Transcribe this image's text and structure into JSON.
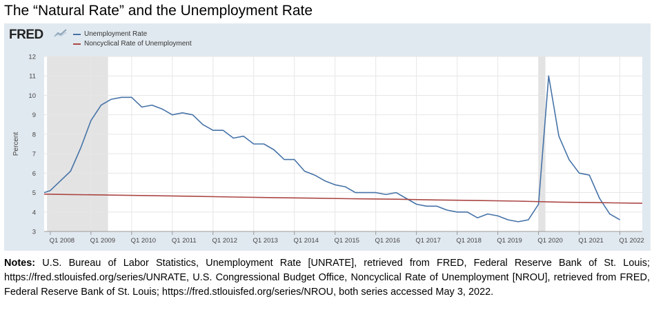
{
  "title": "The “Natural Rate” and the Unemployment Rate",
  "logo_text": "FRED",
  "notes_label": "Notes:",
  "notes_text": "U.S. Bureau of Labor Statistics, Unemployment Rate [UNRATE], retrieved from FRED, Federal Reserve Bank of St. Louis; https://fred.stlouisfed.org/series/UNRATE, U.S. Congressional Budget Office, Noncyclical Rate of Unemployment [NROU], retrieved from FRED, Federal Reserve Bank of St. Louis; https://fred.stlouisfed.org/series/NROU, both series accessed May 3, 2022.",
  "chart_data": {
    "type": "line",
    "title": "The “Natural Rate” and the Unemployment Rate",
    "xlabel": "",
    "ylabel": "Percent",
    "ylim": [
      3,
      12
    ],
    "yticks": [
      3,
      4,
      5,
      6,
      7,
      8,
      9,
      10,
      11,
      12
    ],
    "xlim": [
      2007.85,
      2022.55
    ],
    "xticks": [
      {
        "x": 2008,
        "label": "Q1 2008"
      },
      {
        "x": 2009,
        "label": "Q1 2009"
      },
      {
        "x": 2010,
        "label": "Q1 2010"
      },
      {
        "x": 2011,
        "label": "Q1 2011"
      },
      {
        "x": 2012,
        "label": "Q1 2012"
      },
      {
        "x": 2013,
        "label": "Q1 2013"
      },
      {
        "x": 2014,
        "label": "Q1 2014"
      },
      {
        "x": 2015,
        "label": "Q1 2015"
      },
      {
        "x": 2016,
        "label": "Q1 2016"
      },
      {
        "x": 2017,
        "label": "Q1 2017"
      },
      {
        "x": 2018,
        "label": "Q1 2018"
      },
      {
        "x": 2019,
        "label": "Q1 2019"
      },
      {
        "x": 2020,
        "label": "Q1 2020"
      },
      {
        "x": 2021,
        "label": "Q1 2021"
      },
      {
        "x": 2022,
        "label": "Q1 2022"
      }
    ],
    "grid": true,
    "legend_position": "top-left",
    "recessions": [
      [
        2007.92,
        2009.42
      ],
      [
        2020.0,
        2020.17
      ]
    ],
    "series": [
      {
        "name": "Unemployment Rate",
        "color": "#4572a7",
        "x": [
          2007.85,
          2008.0,
          2008.25,
          2008.5,
          2008.75,
          2009.0,
          2009.25,
          2009.5,
          2009.75,
          2010.0,
          2010.25,
          2010.5,
          2010.75,
          2011.0,
          2011.25,
          2011.5,
          2011.75,
          2012.0,
          2012.25,
          2012.5,
          2012.75,
          2013.0,
          2013.25,
          2013.5,
          2013.75,
          2014.0,
          2014.25,
          2014.5,
          2014.75,
          2015.0,
          2015.25,
          2015.5,
          2015.75,
          2016.0,
          2016.25,
          2016.5,
          2016.75,
          2017.0,
          2017.25,
          2017.5,
          2017.75,
          2018.0,
          2018.25,
          2018.5,
          2018.75,
          2019.0,
          2019.25,
          2019.5,
          2019.75,
          2020.0,
          2020.25,
          2020.5,
          2020.75,
          2021.0,
          2021.25,
          2021.5,
          2021.75,
          2022.0
        ],
        "values": [
          5.0,
          5.1,
          5.6,
          6.1,
          7.3,
          8.7,
          9.5,
          9.8,
          9.9,
          9.9,
          9.4,
          9.5,
          9.3,
          9.0,
          9.1,
          9.0,
          8.5,
          8.2,
          8.2,
          7.8,
          7.9,
          7.5,
          7.5,
          7.2,
          6.7,
          6.7,
          6.1,
          5.9,
          5.6,
          5.4,
          5.3,
          5.0,
          5.0,
          5.0,
          4.9,
          5.0,
          4.7,
          4.4,
          4.3,
          4.3,
          4.1,
          4.0,
          4.0,
          3.7,
          3.9,
          3.8,
          3.6,
          3.5,
          3.6,
          4.4,
          11.0,
          7.9,
          6.7,
          6.0,
          5.9,
          4.7,
          3.9,
          3.6
        ]
      },
      {
        "name": "Noncyclical Rate of Unemployment",
        "color": "#aa4643",
        "x": [
          2007.85,
          2008.5,
          2009.5,
          2010.5,
          2011.5,
          2012.5,
          2013.5,
          2014.5,
          2015.5,
          2016.5,
          2017.5,
          2018.5,
          2019.5,
          2020.5,
          2021.5,
          2022.55
        ],
        "values": [
          4.92,
          4.9,
          4.87,
          4.84,
          4.81,
          4.77,
          4.74,
          4.71,
          4.68,
          4.66,
          4.62,
          4.59,
          4.56,
          4.51,
          4.48,
          4.45
        ]
      }
    ]
  }
}
